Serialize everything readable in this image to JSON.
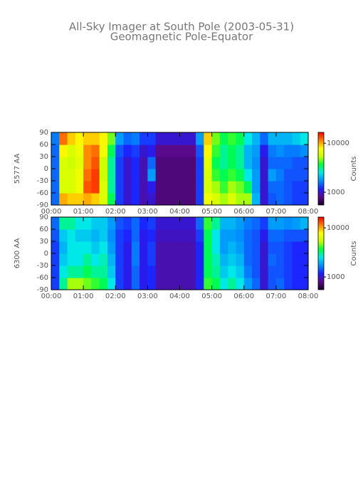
{
  "chart_data": [
    {
      "type": "heatmap",
      "title": "All-Sky Imager at South Pole (2003-05-31)",
      "subtitle": "Geomagnetic Pole-Equator",
      "ylabel": "5577 AA",
      "zlabel": "Counts",
      "zscale": "log",
      "x": [
        0,
        0.25,
        0.5,
        0.75,
        1,
        1.25,
        1.5,
        1.75,
        2,
        2.25,
        2.5,
        2.75,
        3,
        3.25,
        3.5,
        3.75,
        4,
        4.25,
        4.5,
        4.75,
        5,
        5.25,
        5.5,
        5.75,
        6,
        6.25,
        6.5,
        6.75,
        7,
        7.25,
        7.5,
        7.75
      ],
      "y": [
        -75,
        -45,
        -15,
        15,
        45,
        75
      ],
      "z": [
        [
          1500,
          10000,
          9000,
          9000,
          10000,
          9000,
          6000,
          3500,
          1300,
          1000,
          1200,
          900,
          1000,
          750,
          750,
          750,
          750,
          750,
          1300,
          7000,
          6000,
          5000,
          6000,
          5000,
          5000,
          2000,
          1000,
          1400,
          1500,
          1400,
          1300,
          1300
        ],
        [
          1500,
          6000,
          6000,
          7000,
          13000,
          14000,
          6000,
          3000,
          1300,
          1000,
          1200,
          900,
          1100,
          750,
          750,
          750,
          750,
          750,
          1300,
          6000,
          5000,
          4000,
          5000,
          4500,
          3500,
          1800,
          1000,
          1500,
          1500,
          1400,
          1300,
          1300
        ],
        [
          1500,
          6000,
          6000,
          7000,
          12000,
          14000,
          5500,
          3000,
          1300,
          1000,
          1200,
          900,
          1800,
          750,
          750,
          750,
          750,
          750,
          1300,
          6000,
          4000,
          3500,
          4000,
          3500,
          2500,
          1800,
          1000,
          1800,
          1600,
          1400,
          1400,
          1400
        ],
        [
          1500,
          6000,
          5500,
          6500,
          11000,
          13000,
          5500,
          3000,
          1300,
          1000,
          1200,
          900,
          1500,
          750,
          750,
          750,
          750,
          750,
          1300,
          6500,
          3500,
          3000,
          3500,
          3000,
          2000,
          1700,
          1000,
          1500,
          1500,
          1500,
          1400,
          1400
        ],
        [
          1500,
          8000,
          6000,
          7000,
          11000,
          12000,
          7000,
          3500,
          1400,
          1200,
          1300,
          1000,
          1100,
          800,
          800,
          800,
          800,
          800,
          1400,
          8000,
          4000,
          3000,
          3500,
          3000,
          2000,
          1800,
          1100,
          1600,
          1700,
          1600,
          1600,
          1700
        ],
        [
          1600,
          12000,
          9000,
          8000,
          9000,
          9000,
          8000,
          4500,
          1800,
          1500,
          1600,
          1300,
          1300,
          1000,
          1000,
          1000,
          1000,
          1000,
          1800,
          9000,
          4500,
          3500,
          4000,
          3500,
          2500,
          2000,
          1500,
          2000,
          2000,
          2000,
          2200,
          2500
        ]
      ],
      "xlim": [
        0,
        8
      ],
      "ylim": [
        -90,
        90
      ],
      "xticks": [
        {
          "value": 0,
          "label": "00:00"
        },
        {
          "value": 1,
          "label": "01:00"
        },
        {
          "value": 2,
          "label": "02:00"
        },
        {
          "value": 3,
          "label": "03:00"
        },
        {
          "value": 4,
          "label": "04:00"
        },
        {
          "value": 5,
          "label": "05:00"
        },
        {
          "value": 6,
          "label": "06:00"
        },
        {
          "value": 7,
          "label": "07:00"
        },
        {
          "value": 8,
          "label": "08:00"
        }
      ],
      "yticks": [
        -90,
        -60,
        -30,
        0,
        30,
        60,
        90
      ],
      "zlim": [
        550,
        16600
      ],
      "zticks": [
        1000,
        10000
      ],
      "colorscale": [
        "#1a0026",
        "#5a0a8c",
        "#1e1eff",
        "#0090ff",
        "#00e8e8",
        "#00ff40",
        "#c8ff00",
        "#ffff00",
        "#ff8000",
        "#ff0000"
      ]
    },
    {
      "type": "heatmap",
      "ylabel": "6300 AA",
      "zlabel": "Counts",
      "zscale": "log",
      "x": [
        0,
        0.25,
        0.5,
        0.75,
        1,
        1.25,
        1.5,
        1.75,
        2,
        2.25,
        2.5,
        2.75,
        3,
        3.25,
        3.5,
        3.75,
        4,
        4.25,
        4.5,
        4.75,
        5,
        5.25,
        5.5,
        5.75,
        6,
        6.25,
        6.5,
        6.75,
        7,
        7.25,
        7.5,
        7.75
      ],
      "y": [
        -75,
        -45,
        -15,
        15,
        45,
        75
      ],
      "z": [
        [
          1300,
          3000,
          5000,
          5000,
          4500,
          4000,
          3500,
          2500,
          1300,
          1100,
          1500,
          1100,
          1200,
          900,
          900,
          900,
          900,
          900,
          1200,
          4000,
          3500,
          2500,
          3000,
          2500,
          1800,
          1500,
          1000,
          1400,
          1500,
          1300,
          1200,
          1200
        ],
        [
          1300,
          2500,
          3000,
          3000,
          3500,
          3000,
          3000,
          2200,
          1300,
          1100,
          1500,
          1100,
          1200,
          900,
          900,
          900,
          900,
          900,
          1200,
          3500,
          3000,
          2200,
          2500,
          2200,
          1600,
          1400,
          1000,
          1400,
          1400,
          1300,
          1200,
          1200
        ],
        [
          1300,
          2200,
          2500,
          2500,
          3000,
          2500,
          2800,
          2000,
          1300,
          1100,
          1600,
          1100,
          1300,
          900,
          900,
          900,
          900,
          900,
          1200,
          3500,
          2800,
          2000,
          2200,
          2000,
          1500,
          1400,
          1000,
          1500,
          1400,
          1300,
          1200,
          1200
        ],
        [
          1300,
          2000,
          2500,
          2500,
          2500,
          2200,
          2500,
          1800,
          1300,
          1100,
          1600,
          1100,
          1300,
          900,
          900,
          900,
          900,
          900,
          1200,
          3500,
          2500,
          1800,
          2000,
          1800,
          1500,
          1400,
          1000,
          1400,
          1400,
          1300,
          1200,
          1200
        ],
        [
          1400,
          2200,
          2500,
          2200,
          2200,
          2000,
          2200,
          1700,
          1300,
          1200,
          1500,
          1100,
          1200,
          950,
          950,
          950,
          950,
          950,
          1300,
          3500,
          2500,
          1800,
          1800,
          1700,
          1500,
          1400,
          1100,
          1500,
          1500,
          1400,
          1400,
          1400
        ],
        [
          1500,
          3000,
          3000,
          2500,
          2500,
          2200,
          2200,
          1800,
          1400,
          1300,
          1500,
          1200,
          1300,
          1000,
          1000,
          1000,
          1000,
          1000,
          1500,
          4000,
          3000,
          2000,
          2000,
          1800,
          1600,
          1500,
          1300,
          1800,
          1800,
          1700,
          1800,
          2000
        ]
      ],
      "xlim": [
        0,
        8
      ],
      "ylim": [
        -90,
        90
      ],
      "xticks": [
        {
          "value": 0,
          "label": "00:00"
        },
        {
          "value": 1,
          "label": "01:00"
        },
        {
          "value": 2,
          "label": "02:00"
        },
        {
          "value": 3,
          "label": "03:00"
        },
        {
          "value": 4,
          "label": "04:00"
        },
        {
          "value": 5,
          "label": "05:00"
        },
        {
          "value": 6,
          "label": "06:00"
        },
        {
          "value": 7,
          "label": "07:00"
        },
        {
          "value": 8,
          "label": "08:00"
        }
      ],
      "yticks": [
        -90,
        -60,
        -30,
        0,
        30,
        60,
        90
      ],
      "zlim": [
        550,
        16600
      ],
      "zticks": [
        1000,
        10000
      ],
      "colorscale": [
        "#1a0026",
        "#5a0a8c",
        "#1e1eff",
        "#0090ff",
        "#00e8e8",
        "#00ff40",
        "#c8ff00",
        "#ffff00",
        "#ff8000",
        "#ff0000"
      ]
    }
  ]
}
